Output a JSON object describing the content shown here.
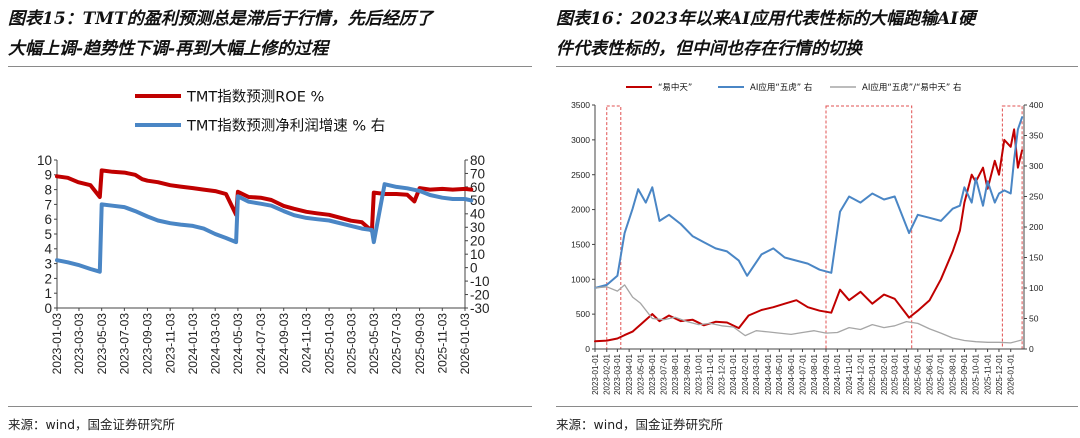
{
  "left": {
    "title_line1": "图表15：TMT的盈利预测总是滞后于行情，先后经历了",
    "title_line2": "大幅上调-趋势性下调-再到大幅上修的过程",
    "source": "来源：wind，国金证券研究所",
    "colors": {
      "roe": "#c00000",
      "growth": "#4a86c5"
    },
    "chart_data": {
      "type": "line",
      "title": "",
      "xlabel": "",
      "ylabel": "",
      "ylim": [
        0,
        10
      ],
      "y2lim": [
        -30,
        80
      ],
      "yticks": [
        0,
        1,
        2,
        3,
        4,
        5,
        6,
        7,
        8,
        9,
        10
      ],
      "y2ticks": [
        -30,
        -20,
        -10,
        0,
        10,
        20,
        30,
        40,
        50,
        60,
        70,
        80
      ],
      "x_tick_labels": [
        "2023-01-03",
        "2023-03-03",
        "2023-05-03",
        "2023-07-03",
        "2023-09-03",
        "2023-11-03",
        "2024-01-03",
        "2024-03-03",
        "2024-05-03",
        "2024-07-03",
        "2024-09-03",
        "2024-11-03",
        "2025-01-03",
        "2025-03-03",
        "2025-05-03",
        "2025-07-03",
        "2025-09-03",
        "2025-11-03",
        "2026-01-03"
      ],
      "grid": false,
      "legend_position": "top",
      "series": [
        {
          "name": "TMT指数预测ROE %",
          "axis": "left",
          "x": [
            "2023-01-03",
            "2023-02-01",
            "2023-03-01",
            "2023-04-03",
            "2023-04-28",
            "2023-05-03",
            "2023-06-01",
            "2023-07-03",
            "2023-08-01",
            "2023-08-20",
            "2023-09-03",
            "2023-10-01",
            "2023-11-03",
            "2023-12-01",
            "2024-01-03",
            "2024-02-01",
            "2024-03-03",
            "2024-04-01",
            "2024-04-28",
            "2024-05-03",
            "2024-06-01",
            "2024-07-03",
            "2024-08-01",
            "2024-09-03",
            "2024-10-01",
            "2024-11-03",
            "2024-12-01",
            "2025-01-03",
            "2025-02-01",
            "2025-03-03",
            "2025-04-01",
            "2025-04-28",
            "2025-05-03",
            "2025-06-01",
            "2025-07-03",
            "2025-08-01",
            "2025-08-20",
            "2025-09-03",
            "2025-10-01",
            "2025-11-03",
            "2025-12-01",
            "2026-01-03",
            "2026-01-20"
          ],
          "y": [
            8.9,
            8.8,
            8.5,
            8.3,
            7.5,
            9.3,
            9.2,
            9.15,
            9.0,
            8.7,
            8.6,
            8.5,
            8.3,
            8.2,
            8.1,
            8.0,
            7.9,
            7.7,
            6.3,
            7.85,
            7.5,
            7.45,
            7.3,
            6.9,
            6.7,
            6.5,
            6.4,
            6.3,
            6.1,
            5.9,
            5.8,
            5.2,
            7.8,
            7.7,
            7.7,
            7.65,
            7.2,
            8.1,
            8.0,
            8.05,
            8.0,
            8.05,
            8.0
          ]
        },
        {
          "name": "TMT指数预测净利润增速 % 右",
          "axis": "right",
          "x": [
            "2023-01-03",
            "2023-02-01",
            "2023-03-01",
            "2023-04-03",
            "2023-04-28",
            "2023-05-03",
            "2023-06-01",
            "2023-07-03",
            "2023-08-01",
            "2023-09-03",
            "2023-10-01",
            "2023-11-03",
            "2023-12-01",
            "2024-01-03",
            "2024-02-01",
            "2024-03-03",
            "2024-04-01",
            "2024-04-28",
            "2024-05-03",
            "2024-06-01",
            "2024-07-03",
            "2024-08-01",
            "2024-09-03",
            "2024-10-01",
            "2024-11-03",
            "2024-12-01",
            "2025-01-03",
            "2025-02-01",
            "2025-03-03",
            "2025-04-01",
            "2025-04-28",
            "2025-05-03",
            "2025-06-01",
            "2025-07-03",
            "2025-08-01",
            "2025-09-03",
            "2025-10-01",
            "2025-11-03",
            "2025-12-01",
            "2026-01-03",
            "2026-01-20"
          ],
          "y": [
            5.5,
            4,
            2,
            -1,
            -3,
            47,
            46,
            45,
            42,
            38,
            35,
            33,
            32,
            31,
            29,
            25,
            22,
            19,
            53,
            49,
            47.5,
            46,
            42,
            39,
            37,
            36,
            35,
            33,
            31,
            29,
            28,
            19,
            62,
            60,
            59,
            57,
            54,
            52,
            51,
            51,
            50
          ]
        }
      ]
    }
  },
  "right": {
    "title_line1": "图表16：2023年以来AI应用代表性标的大幅跑输AI硬",
    "title_line2": "件代表性标的，但中间也存在行情的切换",
    "source": "来源：wind，国金证券研究所",
    "colors": {
      "yizhongtian": "#c00000",
      "ai_app": "#4a86c5",
      "ratio": "#a6a6a6",
      "highlight_box": "#e05050"
    },
    "chart_data": {
      "type": "line",
      "title": "",
      "xlabel": "",
      "ylabel": "",
      "ylim": [
        0,
        3500
      ],
      "y2lim": [
        0,
        400
      ],
      "yticks": [
        0,
        500,
        1000,
        1500,
        2000,
        2500,
        3000,
        3500
      ],
      "y2ticks": [
        0,
        50,
        100,
        150,
        200,
        250,
        300,
        350,
        400
      ],
      "x_tick_labels": [
        "2023-01-01",
        "2023-02-01",
        "2023-03-01",
        "2023-04-01",
        "2023-05-01",
        "2023-06-01",
        "2023-07-01",
        "2023-08-01",
        "2023-09-01",
        "2023-10-01",
        "2023-11-01",
        "2023-12-01",
        "2024-01-01",
        "2024-02-01",
        "2024-03-01",
        "2024-04-01",
        "2024-05-01",
        "2024-06-01",
        "2024-07-01",
        "2024-08-01",
        "2024-09-01",
        "2024-10-01",
        "2024-11-01",
        "2024-12-01",
        "2025-01-01",
        "2025-02-01",
        "2025-03-01",
        "2025-04-01",
        "2025-05-01",
        "2025-06-01",
        "2025-07-01",
        "2025-08-01",
        "2025-09-01",
        "2025-10-01",
        "2025-11-01",
        "2025-12-01",
        "2026-01-01"
      ],
      "grid": false,
      "legend_position": "top",
      "highlight_periods": [
        [
          "2023-02-01",
          "2023-03-10"
        ],
        [
          "2024-09-01",
          "2025-04-15"
        ],
        [
          "2025-12-10",
          "2026-01-31"
        ]
      ],
      "series": [
        {
          "name": "“易中天”",
          "axis": "left",
          "x": [
            "2023-01-01",
            "2023-02-01",
            "2023-03-01",
            "2023-03-20",
            "2023-04-10",
            "2023-05-01",
            "2023-06-01",
            "2023-06-20",
            "2023-07-15",
            "2023-08-15",
            "2023-09-15",
            "2023-10-15",
            "2023-11-15",
            "2023-12-15",
            "2024-01-15",
            "2024-02-10",
            "2024-03-15",
            "2024-04-15",
            "2024-05-15",
            "2024-06-15",
            "2024-07-15",
            "2024-08-15",
            "2024-09-15",
            "2024-10-08",
            "2024-11-01",
            "2024-12-01",
            "2025-01-01",
            "2025-02-01",
            "2025-03-01",
            "2025-04-08",
            "2025-05-01",
            "2025-06-01",
            "2025-07-01",
            "2025-08-01",
            "2025-08-20",
            "2025-09-01",
            "2025-09-20",
            "2025-10-01",
            "2025-10-20",
            "2025-11-01",
            "2025-11-20",
            "2025-12-01",
            "2025-12-15",
            "2026-01-01",
            "2026-01-10",
            "2026-01-20",
            "2026-01-31"
          ],
          "y": [
            110,
            120,
            150,
            200,
            250,
            350,
            500,
            400,
            480,
            400,
            420,
            340,
            390,
            380,
            300,
            480,
            560,
            600,
            650,
            700,
            600,
            550,
            520,
            850,
            700,
            820,
            650,
            780,
            720,
            450,
            550,
            700,
            1000,
            1400,
            1700,
            2100,
            2500,
            2400,
            2600,
            2300,
            2700,
            2500,
            3000,
            2900,
            3150,
            2600,
            2850
          ]
        },
        {
          "name": "AI应用“五虎” 右",
          "axis": "right",
          "x": [
            "2023-01-01",
            "2023-02-01",
            "2023-03-01",
            "2023-03-20",
            "2023-04-10",
            "2023-04-25",
            "2023-05-15",
            "2023-06-01",
            "2023-06-20",
            "2023-07-15",
            "2023-08-15",
            "2023-09-15",
            "2023-10-15",
            "2023-11-15",
            "2023-12-15",
            "2024-01-15",
            "2024-02-06",
            "2024-03-15",
            "2024-04-15",
            "2024-05-15",
            "2024-06-15",
            "2024-07-15",
            "2024-08-15",
            "2024-09-15",
            "2024-10-08",
            "2024-11-01",
            "2024-12-01",
            "2025-01-01",
            "2025-02-01",
            "2025-03-01",
            "2025-04-08",
            "2025-05-01",
            "2025-06-01",
            "2025-07-01",
            "2025-08-01",
            "2025-08-20",
            "2025-09-01",
            "2025-09-20",
            "2025-10-01",
            "2025-10-20",
            "2025-11-01",
            "2025-11-20",
            "2025-12-01",
            "2025-12-15",
            "2026-01-01",
            "2026-01-10",
            "2026-01-20",
            "2026-01-31"
          ],
          "y": [
            100,
            105,
            120,
            190,
            230,
            262,
            240,
            265,
            210,
            220,
            205,
            185,
            175,
            165,
            160,
            145,
            120,
            155,
            165,
            150,
            145,
            140,
            130,
            125,
            225,
            250,
            240,
            255,
            245,
            250,
            190,
            220,
            215,
            210,
            230,
            235,
            265,
            240,
            280,
            235,
            275,
            240,
            255,
            260,
            255,
            310,
            360,
            380
          ]
        },
        {
          "name": "AI应用“五虎”/“易中天” 右",
          "axis": "right",
          "x": [
            "2023-01-01",
            "2023-02-01",
            "2023-03-01",
            "2023-03-20",
            "2023-04-10",
            "2023-05-01",
            "2023-06-01",
            "2023-07-01",
            "2023-08-01",
            "2023-09-01",
            "2023-10-01",
            "2023-11-01",
            "2023-12-01",
            "2024-01-01",
            "2024-02-01",
            "2024-03-01",
            "2024-04-01",
            "2024-05-01",
            "2024-06-01",
            "2024-07-01",
            "2024-08-01",
            "2024-09-01",
            "2024-10-01",
            "2024-11-01",
            "2024-12-01",
            "2025-01-01",
            "2025-02-01",
            "2025-03-01",
            "2025-04-01",
            "2025-05-01",
            "2025-06-01",
            "2025-07-01",
            "2025-08-01",
            "2025-09-01",
            "2025-10-01",
            "2025-11-01",
            "2025-12-01",
            "2026-01-01",
            "2026-01-31"
          ],
          "y": [
            100,
            102,
            95,
            105,
            85,
            75,
            50,
            48,
            52,
            45,
            40,
            42,
            38,
            36,
            22,
            30,
            28,
            26,
            24,
            27,
            30,
            26,
            27,
            35,
            32,
            40,
            35,
            38,
            45,
            42,
            33,
            26,
            18,
            14,
            12,
            11,
            11,
            10,
            15
          ]
        }
      ]
    }
  }
}
